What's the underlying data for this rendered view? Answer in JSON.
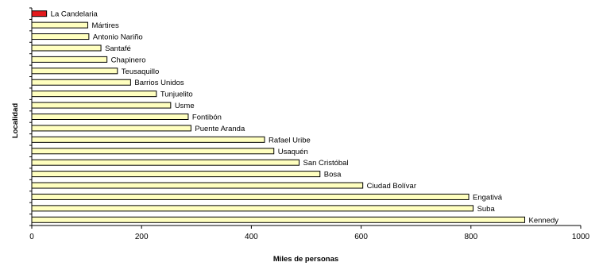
{
  "chart_data": {
    "type": "bar",
    "orientation": "horizontal",
    "xlabel": "Miles de personas",
    "ylabel": "Localidad",
    "xlim": [
      0,
      1000
    ],
    "x_ticks": [
      0,
      200,
      400,
      600,
      800,
      1000
    ],
    "grid": false,
    "categories": [
      "La Candelaria",
      "Mártires",
      "Antonio Nariño",
      "Santafé",
      "Chapinero",
      "Teusaquillo",
      "Barrios Unidos",
      "Tunjuelito",
      "Usme",
      "Fontibón",
      "Puente Aranda",
      "Rafael Uribe",
      "Usaquén",
      "San Cristóbal",
      "Bosa",
      "Ciudad Bolívar",
      "Engativá",
      "Suba",
      "Kennedy"
    ],
    "values": [
      27,
      102,
      104,
      126,
      137,
      156,
      180,
      227,
      253,
      285,
      290,
      424,
      441,
      487,
      525,
      603,
      796,
      804,
      898
    ],
    "bar_color": "#ffffbf",
    "highlight_color": "#e31a1c",
    "highlight_category": "La Candelaria"
  }
}
